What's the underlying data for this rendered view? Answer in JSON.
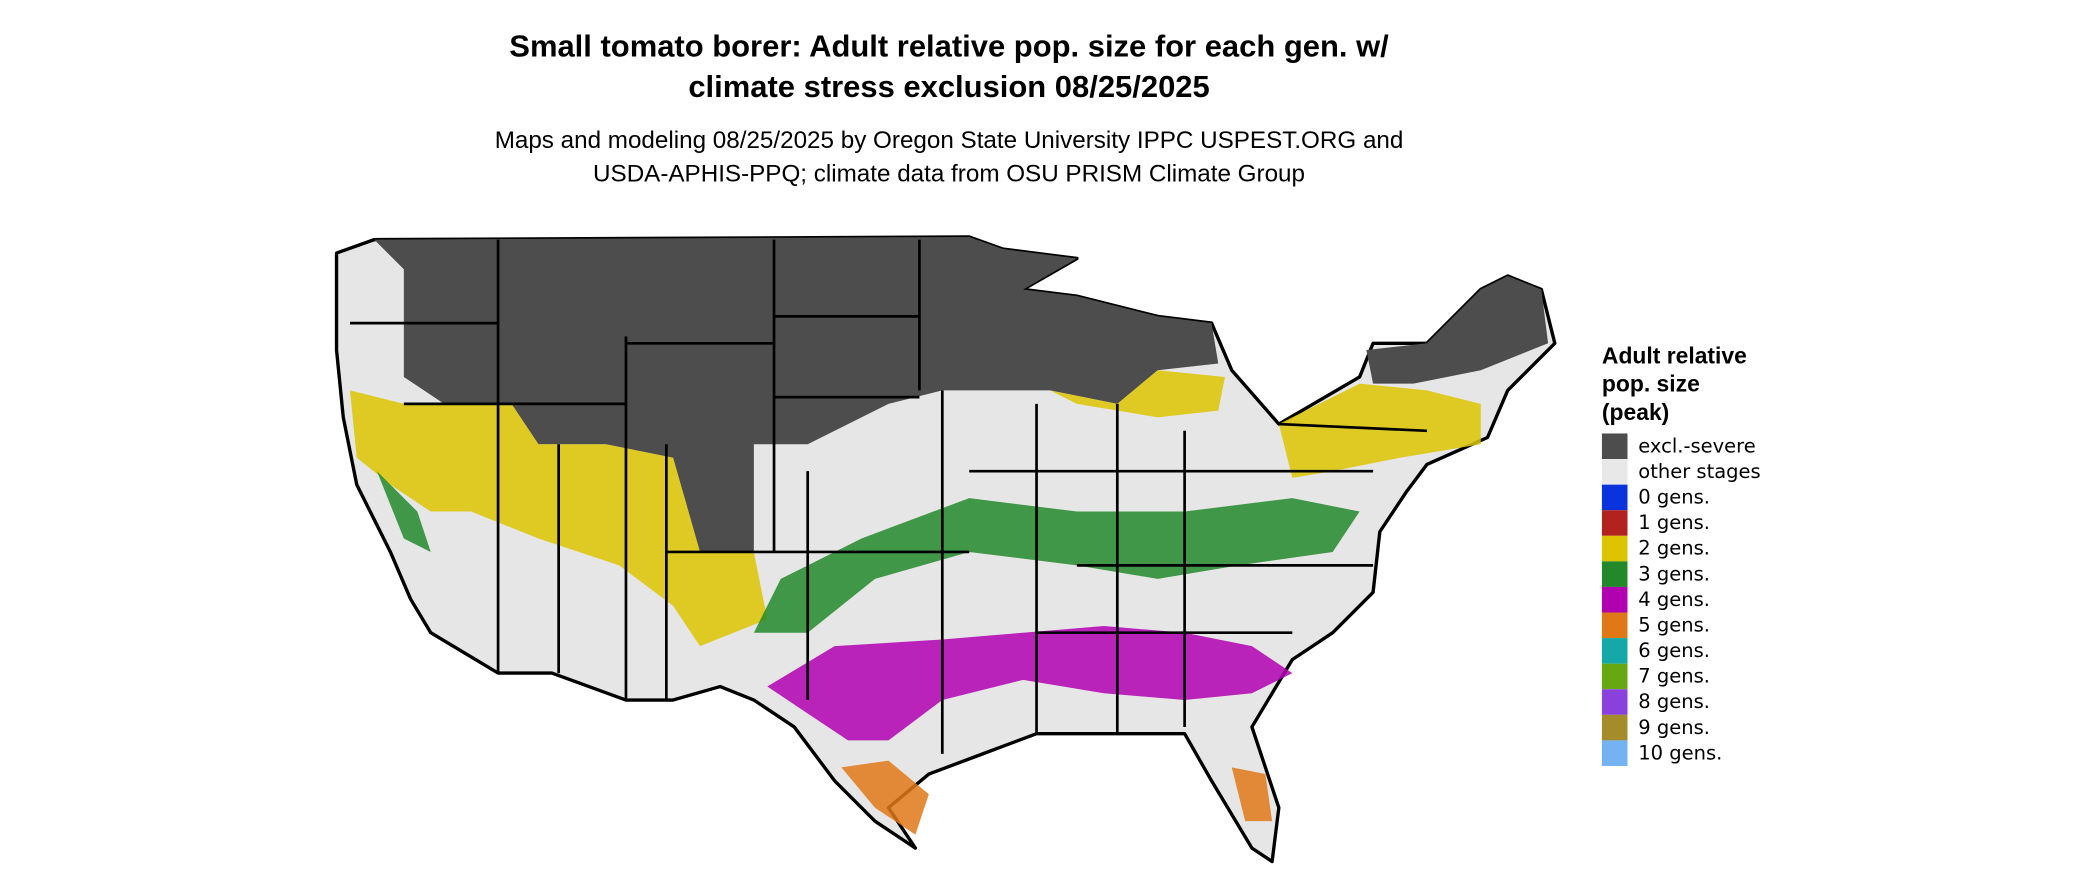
{
  "title": [
    "Small tomato borer: Adult relative pop. size for each gen. w/",
    "climate stress exclusion 08/25/2025"
  ],
  "subtitle": [
    "Maps and modeling 08/25/2025 by Oregon State University IPPC USPEST.ORG and",
    "USDA-APHIS-PPQ; climate data from OSU PRISM Climate Group"
  ],
  "legend": {
    "title": [
      "Adult relative",
      "pop. size",
      "(peak)"
    ],
    "items": [
      {
        "label": "excl.-severe",
        "color": "#4d4d4d"
      },
      {
        "label": "other stages",
        "color": "#e8e8e8"
      },
      {
        "label": "0 gens.",
        "color": "#0a33dd"
      },
      {
        "label": "1 gens.",
        "color": "#b2221e"
      },
      {
        "label": "2 gens.",
        "color": "#dcc400"
      },
      {
        "label": "3 gens.",
        "color": "#22882a"
      },
      {
        "label": "4 gens.",
        "color": "#b000b0"
      },
      {
        "label": "5 gens.",
        "color": "#e07818"
      },
      {
        "label": "6 gens.",
        "color": "#14a8a8"
      },
      {
        "label": "7 gens.",
        "color": "#66a812"
      },
      {
        "label": "8 gens.",
        "color": "#8a40dc"
      },
      {
        "label": "9 gens.",
        "color": "#a48c2a"
      },
      {
        "label": "10 gens.",
        "color": "#74b2f2"
      }
    ]
  }
}
